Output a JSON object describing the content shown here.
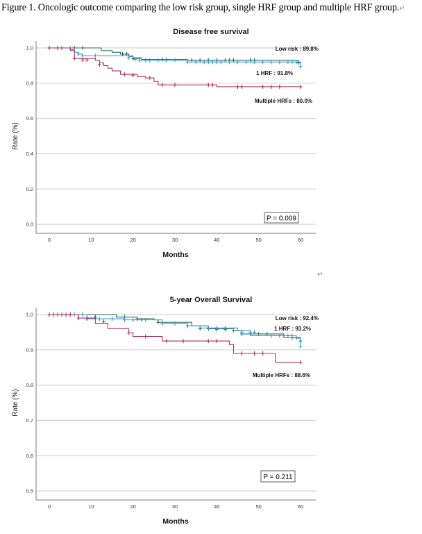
{
  "document": {
    "caption": "Figure 1. Oncologic outcome comparing the low risk group, single HRF group and multiple HRF group.",
    "caption_end_mark": "↵",
    "paragraph_mark": "↵"
  },
  "colors": {
    "low_risk": "#2e6b5e",
    "one_hrf": "#3a9ad6",
    "multiple_hrfs": "#a8325e",
    "grid": "#d4d4d4",
    "axis": "#777777"
  },
  "chart_data": [
    {
      "type": "line",
      "subtype": "kaplan-meier-step",
      "title": "Disease free survival",
      "xlabel": "Months",
      "ylabel": "Rate (%)",
      "xlim": [
        0,
        60
      ],
      "ylim": [
        0.0,
        1.0
      ],
      "xticks": [
        "0",
        "10",
        "20",
        "30",
        "40",
        "50",
        "60"
      ],
      "yticks": [
        "0.0",
        "0.2",
        "0.4",
        "0.6",
        "0.8",
        "1.0"
      ],
      "ytick_values": [
        0.0,
        0.2,
        0.4,
        0.6,
        0.8,
        1.0
      ],
      "grid": true,
      "p_value_label": "P = 0.009",
      "p_value_position": "bottom-right",
      "annotations": [
        {
          "series": "low_risk",
          "text": "Low risk : 89.8%"
        },
        {
          "series": "one_hrf",
          "text": "1 HRF : 91.8%"
        },
        {
          "series": "multiple_hrfs",
          "text": "Multiple HRFs : 80.0%"
        }
      ],
      "series": [
        {
          "name": "low_risk",
          "label": "Low risk",
          "steps": [
            [
              0,
              1.0
            ],
            [
              12,
              1.0
            ],
            [
              12.4,
              0.985
            ],
            [
              15,
              0.975
            ],
            [
              17,
              0.965
            ],
            [
              19,
              0.952
            ],
            [
              20,
              0.94
            ],
            [
              22,
              0.935
            ],
            [
              31,
              0.935
            ],
            [
              33,
              0.93
            ],
            [
              58,
              0.93
            ],
            [
              59.5,
              0.915
            ],
            [
              60,
              0.915
            ]
          ],
          "censored": [
            [
              0,
              1.0
            ],
            [
              2,
              1.0
            ],
            [
              6,
              1.0
            ],
            [
              8,
              1.0
            ],
            [
              17.5,
              0.965
            ],
            [
              18.5,
              0.965
            ],
            [
              20,
              0.94
            ],
            [
              27,
              0.935
            ],
            [
              28,
              0.935
            ],
            [
              34,
              0.93
            ],
            [
              36,
              0.93
            ],
            [
              38,
              0.93
            ],
            [
              40,
              0.93
            ],
            [
              42,
              0.93
            ],
            [
              43,
              0.93
            ],
            [
              44,
              0.93
            ],
            [
              48,
              0.93
            ],
            [
              49,
              0.93
            ],
            [
              59.5,
              0.915
            ]
          ]
        },
        {
          "name": "one_hrf",
          "label": "1 HRF",
          "steps": [
            [
              0,
              1.0
            ],
            [
              4,
              1.0
            ],
            [
              5,
              0.99
            ],
            [
              6,
              0.975
            ],
            [
              7,
              0.965
            ],
            [
              8,
              0.955
            ],
            [
              17,
              0.955
            ],
            [
              20,
              0.945
            ],
            [
              22,
              0.93
            ],
            [
              31,
              0.93
            ],
            [
              33,
              0.92
            ],
            [
              58,
              0.92
            ],
            [
              60,
              0.92
            ],
            [
              60,
              0.895
            ]
          ],
          "censored": [
            [
              5,
              1.0
            ],
            [
              7,
              0.965
            ],
            [
              8,
              0.955
            ],
            [
              11,
              0.955
            ],
            [
              19,
              0.945
            ],
            [
              20.5,
              0.935
            ],
            [
              21.5,
              0.93
            ],
            [
              23,
              0.93
            ],
            [
              24,
              0.93
            ],
            [
              26,
              0.93
            ],
            [
              28,
              0.93
            ],
            [
              30,
              0.93
            ],
            [
              33,
              0.92
            ],
            [
              35,
              0.92
            ],
            [
              37,
              0.92
            ],
            [
              38,
              0.92
            ],
            [
              39,
              0.92
            ],
            [
              40,
              0.92
            ],
            [
              41,
              0.92
            ],
            [
              43,
              0.92
            ],
            [
              45,
              0.92
            ],
            [
              47,
              0.92
            ],
            [
              49,
              0.92
            ],
            [
              51,
              0.92
            ],
            [
              53,
              0.92
            ],
            [
              55,
              0.92
            ],
            [
              57,
              0.92
            ],
            [
              58,
              0.92
            ],
            [
              59,
              0.92
            ],
            [
              60,
              0.895
            ]
          ]
        },
        {
          "name": "multiple_hrfs",
          "label": "Multiple HRFs",
          "steps": [
            [
              0,
              1.0
            ],
            [
              4,
              1.0
            ],
            [
              5,
              0.985
            ],
            [
              6,
              0.94
            ],
            [
              10,
              0.94
            ],
            [
              11,
              0.93
            ],
            [
              12,
              0.915
            ],
            [
              13,
              0.9
            ],
            [
              14,
              0.885
            ],
            [
              15,
              0.87
            ],
            [
              17,
              0.85
            ],
            [
              20,
              0.85
            ],
            [
              21,
              0.838
            ],
            [
              23,
              0.83
            ],
            [
              25,
              0.81
            ],
            [
              26,
              0.79
            ],
            [
              30,
              0.79
            ],
            [
              40,
              0.79
            ],
            [
              40,
              0.78
            ],
            [
              60,
              0.78
            ]
          ],
          "censored": [
            [
              2,
              1.0
            ],
            [
              3,
              1.0
            ],
            [
              6,
              0.94
            ],
            [
              8,
              0.932
            ],
            [
              9,
              0.932
            ],
            [
              12,
              0.905
            ],
            [
              18,
              0.85
            ],
            [
              20,
              0.845
            ],
            [
              24,
              0.83
            ],
            [
              27,
              0.79
            ],
            [
              30,
              0.79
            ],
            [
              38,
              0.79
            ],
            [
              39,
              0.79
            ],
            [
              45,
              0.78
            ],
            [
              46,
              0.78
            ],
            [
              51,
              0.78
            ],
            [
              53,
              0.78
            ],
            [
              55,
              0.78
            ],
            [
              60,
              0.78
            ]
          ]
        }
      ]
    },
    {
      "type": "line",
      "subtype": "kaplan-meier-step",
      "title": "5-year Overall Survival",
      "xlabel": "Months",
      "ylabel": "Rate (%)",
      "xlim": [
        0,
        60
      ],
      "ylim": [
        0.5,
        1.0
      ],
      "xticks": [
        "0",
        "10",
        "20",
        "30",
        "40",
        "50",
        "60"
      ],
      "yticks": [
        "0.5",
        "0.6",
        "0.7",
        "0.8",
        "0.9",
        "1.0"
      ],
      "ytick_values": [
        0.5,
        0.6,
        0.7,
        0.8,
        0.9,
        1.0
      ],
      "grid": true,
      "p_value_label": "P = 0.211",
      "p_value_position": "bottom-right",
      "annotations": [
        {
          "series": "low_risk",
          "text": "Low risk : 92.4%"
        },
        {
          "series": "one_hrf",
          "text": "1 HRF :  93.2%"
        },
        {
          "series": "multiple_hrfs",
          "text": "Multiple HRFs : 88.6%"
        }
      ],
      "series": [
        {
          "name": "low_risk",
          "label": "Low risk",
          "steps": [
            [
              0,
              1.0
            ],
            [
              15,
              1.0
            ],
            [
              16,
              0.993
            ],
            [
              20,
              0.993
            ],
            [
              21,
              0.988
            ],
            [
              25,
              0.985
            ],
            [
              26,
              0.978
            ],
            [
              33,
              0.978
            ],
            [
              34,
              0.968
            ],
            [
              38,
              0.96
            ],
            [
              43,
              0.96
            ],
            [
              44,
              0.955
            ],
            [
              46,
              0.945
            ],
            [
              55,
              0.945
            ],
            [
              56,
              0.935
            ],
            [
              59,
              0.935
            ],
            [
              60,
              0.925
            ]
          ],
          "censored": [
            [
              0,
              1.0
            ],
            [
              1,
              1.0
            ],
            [
              2,
              1.0
            ],
            [
              3,
              1.0
            ],
            [
              5,
              1.0
            ],
            [
              8,
              1.0
            ],
            [
              11,
              0.993
            ],
            [
              18,
              0.993
            ],
            [
              21,
              0.988
            ],
            [
              26,
              0.978
            ],
            [
              33,
              0.968
            ],
            [
              36,
              0.96
            ],
            [
              38,
              0.96
            ],
            [
              40,
              0.958
            ],
            [
              42,
              0.958
            ],
            [
              44,
              0.955
            ],
            [
              46,
              0.945
            ],
            [
              48,
              0.945
            ],
            [
              50,
              0.945
            ],
            [
              52,
              0.945
            ],
            [
              58,
              0.935
            ],
            [
              59,
              0.935
            ],
            [
              60,
              0.925
            ]
          ]
        },
        {
          "name": "one_hrf",
          "label": "1 HRF",
          "steps": [
            [
              0,
              1.0
            ],
            [
              8,
              1.0
            ],
            [
              9,
              0.988
            ],
            [
              17,
              0.988
            ],
            [
              18,
              0.985
            ],
            [
              26,
              0.985
            ],
            [
              27,
              0.975
            ],
            [
              32,
              0.975
            ],
            [
              33,
              0.968
            ],
            [
              36,
              0.962
            ],
            [
              44,
              0.962
            ],
            [
              45,
              0.955
            ],
            [
              48,
              0.94
            ],
            [
              57,
              0.94
            ],
            [
              59,
              0.933
            ],
            [
              60,
              0.933
            ],
            [
              60,
              0.91
            ]
          ],
          "censored": [
            [
              6,
              1.0
            ],
            [
              8,
              1.0
            ],
            [
              9,
              0.988
            ],
            [
              12,
              0.988
            ],
            [
              15,
              0.988
            ],
            [
              18,
              0.985
            ],
            [
              20,
              0.985
            ],
            [
              22,
              0.985
            ],
            [
              23,
              0.985
            ],
            [
              27,
              0.975
            ],
            [
              30,
              0.975
            ],
            [
              33,
              0.968
            ],
            [
              38,
              0.962
            ],
            [
              40,
              0.962
            ],
            [
              42,
              0.962
            ],
            [
              44,
              0.955
            ],
            [
              46,
              0.95
            ],
            [
              48,
              0.95
            ],
            [
              49,
              0.95
            ],
            [
              53,
              0.94
            ],
            [
              55,
              0.94
            ],
            [
              57,
              0.94
            ],
            [
              58,
              0.94
            ],
            [
              60,
              0.91
            ]
          ]
        },
        {
          "name": "multiple_hrfs",
          "label": "Multiple HRFs",
          "steps": [
            [
              0,
              1.0
            ],
            [
              6,
              1.0
            ],
            [
              7,
              0.99
            ],
            [
              10,
              0.99
            ],
            [
              11,
              0.975
            ],
            [
              13,
              0.975
            ],
            [
              14,
              0.96
            ],
            [
              18,
              0.96
            ],
            [
              19,
              0.948
            ],
            [
              20,
              0.938
            ],
            [
              26,
              0.938
            ],
            [
              27,
              0.925
            ],
            [
              42,
              0.925
            ],
            [
              43,
              0.915
            ],
            [
              44,
              0.89
            ],
            [
              53,
              0.89
            ],
            [
              54,
              0.865
            ],
            [
              60,
              0.865
            ]
          ],
          "censored": [
            [
              1,
              1.0
            ],
            [
              2,
              1.0
            ],
            [
              4,
              1.0
            ],
            [
              5,
              1.0
            ],
            [
              7,
              0.99
            ],
            [
              9,
              0.99
            ],
            [
              13,
              0.98
            ],
            [
              19,
              0.948
            ],
            [
              23,
              0.938
            ],
            [
              28,
              0.925
            ],
            [
              32,
              0.925
            ],
            [
              38,
              0.925
            ],
            [
              40,
              0.925
            ],
            [
              46,
              0.89
            ],
            [
              49,
              0.89
            ],
            [
              51,
              0.89
            ],
            [
              60,
              0.865
            ]
          ]
        }
      ]
    }
  ]
}
